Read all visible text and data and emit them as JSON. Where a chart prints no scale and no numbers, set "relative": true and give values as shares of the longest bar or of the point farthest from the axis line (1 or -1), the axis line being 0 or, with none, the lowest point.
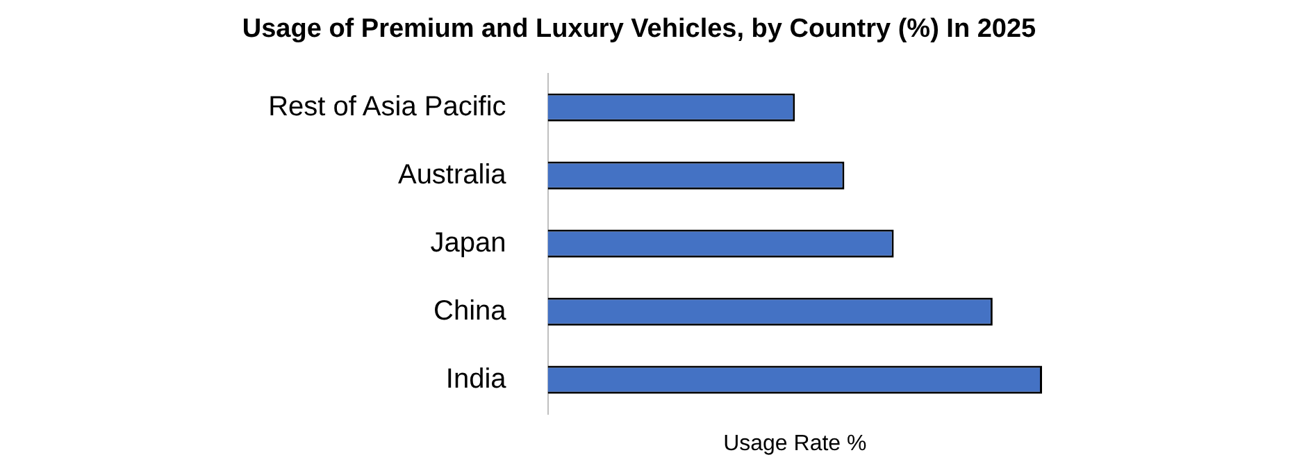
{
  "chart_data": {
    "type": "bar",
    "orientation": "horizontal",
    "relative": true,
    "title": "Usage of Premium and Luxury Vehicles, by Country (%) In 2025",
    "xlabel": "Usage Rate %",
    "categories": [
      "Rest of Asia Pacific",
      "Australia",
      "Japan",
      "China",
      "India"
    ],
    "values": [
      0.5,
      0.6,
      0.7,
      0.9,
      1
    ],
    "color": "#4472c4",
    "grid": false,
    "legend": false
  }
}
